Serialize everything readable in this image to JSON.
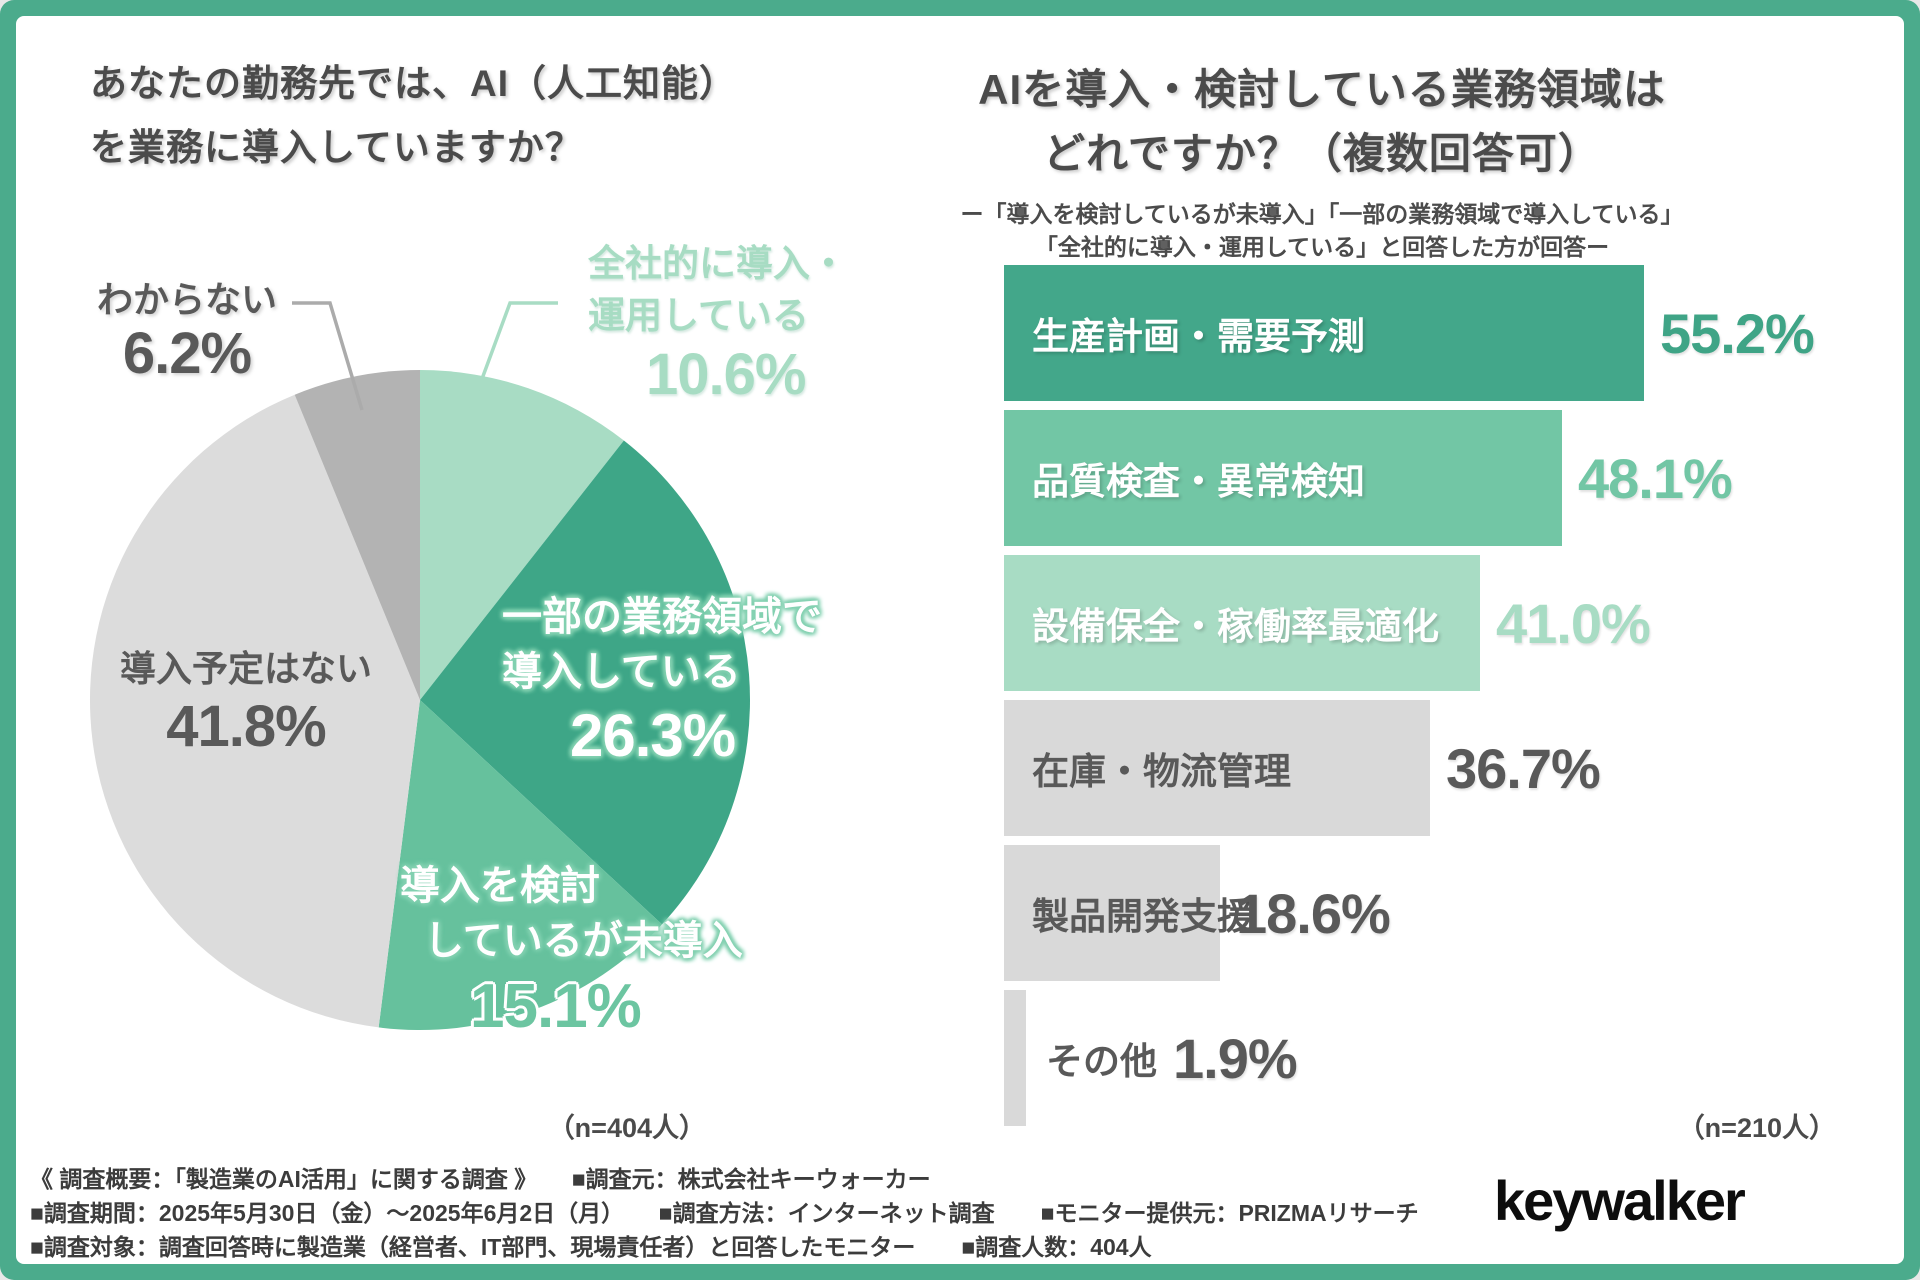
{
  "colors": {
    "frame": "#4bab8c",
    "background": "#ffffff",
    "text_dark": "#4b4b4b",
    "text_gray": "#595959",
    "mint_light": "#a8dcc4",
    "green_mid": "#66c19d",
    "teal": "#3ea687",
    "bar_gray": "#d9d9d9"
  },
  "chart_data": [
    {
      "type": "pie",
      "title_line1": "あなたの勤務先では、AI（人工知能）",
      "title_line2": "を業務に導入していますか？",
      "n_label": "（n=404人）",
      "start_angle_deg": 0,
      "direction": "clockwise",
      "slices": [
        {
          "label": "全社的に導入・運用している",
          "value": 10.6,
          "display": "10.6%",
          "color": "#a8dcc4"
        },
        {
          "label": "一部の業務領域で導入している",
          "value": 26.3,
          "display": "26.3%",
          "color": "#3ea687"
        },
        {
          "label": "導入を検討しているが未導入",
          "value": 15.1,
          "display": "15.1%",
          "color": "#66c19d"
        },
        {
          "label": "導入予定はない",
          "value": 41.8,
          "display": "41.8%",
          "color": "#dcdcdc"
        },
        {
          "label": "わからない",
          "value": 6.2,
          "display": "6.2%",
          "color": "#b3b3b3"
        }
      ],
      "callouts": {
        "wakaranai": {
          "line1": "わからない",
          "value": "6.2%"
        },
        "zensha": {
          "line1": "全社的に導入・",
          "line2": "運用している",
          "value": "10.6%"
        },
        "yotei": {
          "line1": "導入予定はない",
          "value": "41.8%"
        },
        "ichibu": {
          "line1": "一部の業務領域で",
          "line2": "導入している",
          "value": "26.3%"
        },
        "kento": {
          "line1": "導入を検討",
          "line2": "しているが未導入",
          "value": "15.1%"
        }
      }
    },
    {
      "type": "bar",
      "orientation": "horizontal",
      "title_line1": "AIを導入・検討している業務領域は",
      "title_line2": "どれですか？（複数回答可）",
      "subtitle_line1": "ー「導入を検討しているが未導入」「一部の業務領域で導入している」",
      "subtitle_line2": "「全社的に導入・運用している」と回答した方が回答ー",
      "n_label": "（n=210人）",
      "categories": [
        "生産計画・需要予測",
        "品質検査・異常検知",
        "設備保全・稼働率最適化",
        "在庫・物流管理",
        "製品開発支援",
        "その他"
      ],
      "values": [
        55.2,
        48.1,
        41.0,
        36.7,
        18.6,
        1.9
      ],
      "value_displays": [
        "55.2%",
        "48.1%",
        "41.0%",
        "36.7%",
        "18.6%",
        "1.9%"
      ],
      "bar_colors": [
        "#43a78a",
        "#72c6a5",
        "#a8dcc4",
        "#d9d9d9",
        "#d9d9d9",
        "#d9d9d9"
      ],
      "label_colors": [
        "#ffffff",
        "#ffffff",
        "#ffffff",
        "#595959",
        "#595959",
        "#595959"
      ],
      "label_on_color": [
        true,
        true,
        true,
        false,
        false,
        false
      ],
      "value_colors": [
        "#3fa486",
        "#72c6a5",
        "#a8dcc4",
        "#595959",
        "#595959",
        "#595959"
      ],
      "xlim": [
        0,
        60
      ],
      "grid": false,
      "legend": "none"
    }
  ],
  "footer": {
    "lines": [
      "《 調査概要：「製造業のAI活用」に関する調査 》　　■調査元：株式会社キーウォーカー",
      "■調査期間：2025年5月30日（金）〜2025年6月2日（月）　　■調査方法：インターネット調査　　■モニター提供元：PRIZMAリサーチ",
      "■調査対象：調査回答時に製造業（経営者、IT部門、現場責任者）と回答したモニター　　■調査人数：404人"
    ]
  },
  "brand": {
    "logo_text": "keywalker"
  }
}
